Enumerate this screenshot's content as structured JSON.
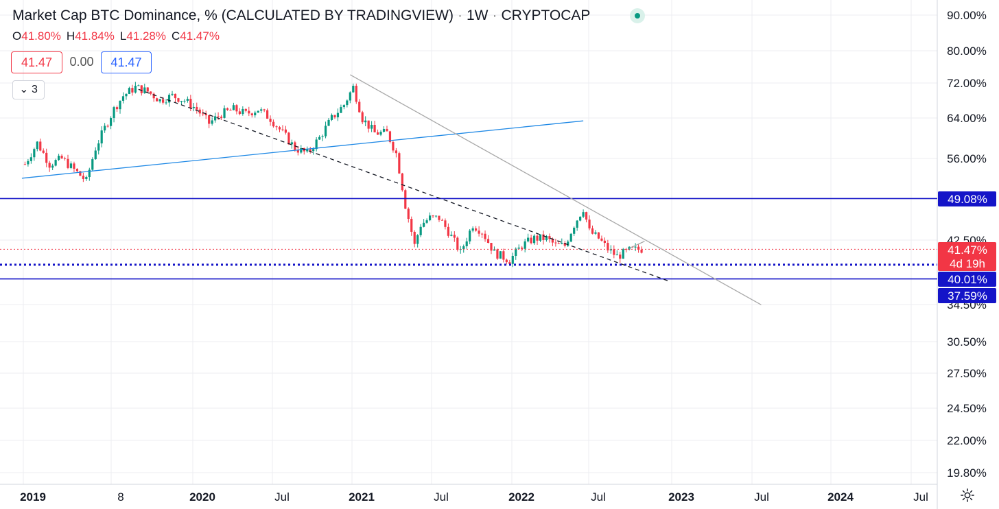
{
  "header": {
    "title": "Market Cap BTC Dominance, % (CALCULATED BY TRADINGVIEW)",
    "interval": "1W",
    "source": "CRYPTOCAP",
    "ohlc": {
      "o_label": "O",
      "o": "41.80%",
      "h_label": "H",
      "h": "41.84%",
      "l_label": "L",
      "l": "41.28%",
      "c_label": "C",
      "c": "41.47%"
    },
    "value_boxes": {
      "sell": "41.47",
      "spread": "0.00",
      "buy": "41.47"
    },
    "collapse_label": "3"
  },
  "colors": {
    "up": "#089981",
    "down": "#f23645",
    "blue_line": "#1e88e5",
    "horiz": "#1414c8",
    "gray": "#a8a8a8",
    "grid": "#eceef2"
  },
  "chart_data": {
    "type": "candlestick",
    "scale": "log",
    "y_ticks": [
      "90.00%",
      "80.00%",
      "72.00%",
      "64.00%",
      "56.00%",
      "49.08%",
      "42.50%",
      "34.50%",
      "30.50%",
      "27.50%",
      "24.50%",
      "22.00%",
      "19.80%"
    ],
    "x_ticks": [
      {
        "label": "2019",
        "bold": true
      },
      {
        "label": "8",
        "bold": false
      },
      {
        "label": "2020",
        "bold": true
      },
      {
        "label": "Jul",
        "bold": false
      },
      {
        "label": "2021",
        "bold": true
      },
      {
        "label": "Jul",
        "bold": false
      },
      {
        "label": "2022",
        "bold": true
      },
      {
        "label": "Jul",
        "bold": false
      },
      {
        "label": "2023",
        "bold": true
      },
      {
        "label": "Jul",
        "bold": false
      },
      {
        "label": "2024",
        "bold": true
      },
      {
        "label": "Jul",
        "bold": false
      }
    ],
    "price_labels": [
      {
        "value": "49.08%",
        "bg": "#1414c8"
      },
      {
        "value": "41.47%",
        "sub": "4d 19h",
        "bg": "#f23645"
      },
      {
        "value": "40.01%",
        "bg": "#1414c8"
      },
      {
        "value": "37.59%",
        "bg": "#1414c8"
      }
    ],
    "anchors": [
      [
        "2018-12-17",
        55
      ],
      [
        "2019-01-14",
        59
      ],
      [
        "2019-02-11",
        55
      ],
      [
        "2019-03-11",
        56
      ],
      [
        "2019-04-08",
        54
      ],
      [
        "2019-05-06",
        52
      ],
      [
        "2019-05-27",
        58
      ],
      [
        "2019-06-17",
        62
      ],
      [
        "2019-07-08",
        66
      ],
      [
        "2019-07-29",
        69
      ],
      [
        "2019-08-26",
        71
      ],
      [
        "2019-09-23",
        70
      ],
      [
        "2019-10-21",
        68
      ],
      [
        "2019-11-18",
        69
      ],
      [
        "2019-12-16",
        68
      ],
      [
        "2020-01-13",
        66
      ],
      [
        "2020-02-10",
        63
      ],
      [
        "2020-03-09",
        65
      ],
      [
        "2020-04-06",
        66
      ],
      [
        "2020-05-04",
        65
      ],
      [
        "2020-06-01",
        66
      ],
      [
        "2020-06-29",
        64
      ],
      [
        "2020-07-27",
        61
      ],
      [
        "2020-08-24",
        58
      ],
      [
        "2020-09-21",
        57
      ],
      [
        "2020-10-19",
        60
      ],
      [
        "2020-11-16",
        64
      ],
      [
        "2020-12-14",
        67
      ],
      [
        "2021-01-04",
        71
      ],
      [
        "2021-01-25",
        64
      ],
      [
        "2021-02-22",
        61
      ],
      [
        "2021-03-22",
        61
      ],
      [
        "2021-04-12",
        57
      ],
      [
        "2021-05-03",
        48
      ],
      [
        "2021-05-24",
        42
      ],
      [
        "2021-06-07",
        45
      ],
      [
        "2021-06-28",
        46
      ],
      [
        "2021-07-19",
        46
      ],
      [
        "2021-08-09",
        44
      ],
      [
        "2021-09-06",
        41
      ],
      [
        "2021-10-04",
        45
      ],
      [
        "2021-10-25",
        44
      ],
      [
        "2021-11-22",
        41
      ],
      [
        "2021-12-27",
        40
      ],
      [
        "2022-01-24",
        42
      ],
      [
        "2022-02-21",
        43
      ],
      [
        "2022-03-21",
        43
      ],
      [
        "2022-04-11",
        42
      ],
      [
        "2022-05-02",
        42
      ],
      [
        "2022-05-23",
        45
      ],
      [
        "2022-06-13",
        47.5
      ],
      [
        "2022-06-27",
        44
      ],
      [
        "2022-07-18",
        43
      ],
      [
        "2022-08-08",
        41.5
      ],
      [
        "2022-08-29",
        40.5
      ],
      [
        "2022-09-26",
        41.3
      ],
      [
        "2022-10-24",
        41.5
      ]
    ],
    "trendlines": [
      {
        "name": "blue-support",
        "color": "#1e88e5",
        "dashed": false,
        "p1": [
          "2018-12-10",
          52.5
        ],
        "p2": [
          "2022-06-13",
          63.5
        ]
      },
      {
        "name": "black-dashed",
        "color": "#131722",
        "dashed": true,
        "p1": [
          "2019-09-02",
          70.5
        ],
        "p2": [
          "2022-12-26",
          37.3
        ]
      },
      {
        "name": "gray-descending",
        "color": "#a8a8a8",
        "dashed": false,
        "p1": [
          "2020-12-28",
          74
        ],
        "p2": [
          "2023-07-24",
          34.5
        ]
      },
      {
        "name": "gray-recent",
        "color": "#a8a8a8",
        "dashed": false,
        "p1": [
          "2022-09-26",
          41.6
        ],
        "p2": [
          "2022-10-31",
          42.6
        ]
      }
    ],
    "hlines": [
      {
        "value": 49.08,
        "color": "#1414c8",
        "style": "solid"
      },
      {
        "value": 39.4,
        "color": "#1414c8",
        "style": "dotted"
      },
      {
        "value": 37.59,
        "color": "#1414c8",
        "style": "solid"
      },
      {
        "value": 41.47,
        "color": "#f23645",
        "style": "dotted-thin"
      }
    ]
  }
}
